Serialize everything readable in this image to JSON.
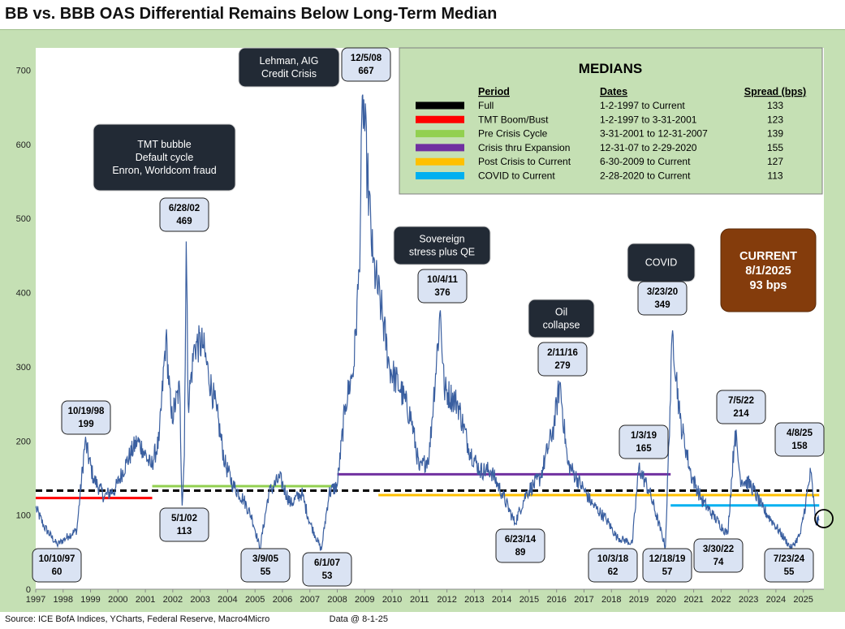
{
  "title": "BB vs. BBB OAS Differential Remains Below Long-Term Median",
  "source": "Source: ICE BofA Indices, YCharts, Federal Reserve, Macro4Micro",
  "data_date": "Data @ 8-1-25",
  "chart_data": {
    "type": "line",
    "x_ticks": [
      "1997",
      "1998",
      "1999",
      "2000",
      "2001",
      "2002",
      "2003",
      "2004",
      "2005",
      "2006",
      "2007",
      "2008",
      "2009",
      "2010",
      "2011",
      "2012",
      "2013",
      "2014",
      "2015",
      "2016",
      "2017",
      "2018",
      "2019",
      "2020",
      "2021",
      "2022",
      "2023",
      "2024",
      "2025"
    ],
    "y_ticks": [
      0,
      100,
      200,
      300,
      400,
      500,
      600,
      700
    ],
    "xlim": [
      1997.0,
      2025.75
    ],
    "ylim": [
      0,
      730
    ],
    "grid": false,
    "series_color": "#3a5fa0",
    "anchors": [
      [
        1997.0,
        110
      ],
      [
        1997.3,
        85
      ],
      [
        1997.78,
        60
      ],
      [
        1998.2,
        72
      ],
      [
        1998.5,
        80
      ],
      [
        1998.8,
        199
      ],
      [
        1999.1,
        150
      ],
      [
        1999.5,
        125
      ],
      [
        1999.9,
        135
      ],
      [
        2000.3,
        170
      ],
      [
        2000.7,
        200
      ],
      [
        2000.9,
        190
      ],
      [
        2001.2,
        165
      ],
      [
        2001.5,
        200
      ],
      [
        2001.75,
        340
      ],
      [
        2001.95,
        230
      ],
      [
        2002.25,
        270
      ],
      [
        2002.34,
        113
      ],
      [
        2002.42,
        180
      ],
      [
        2002.49,
        469
      ],
      [
        2002.56,
        250
      ],
      [
        2002.8,
        330
      ],
      [
        2003.1,
        330
      ],
      [
        2003.3,
        290
      ],
      [
        2003.6,
        240
      ],
      [
        2003.9,
        170
      ],
      [
        2004.2,
        140
      ],
      [
        2004.6,
        120
      ],
      [
        2004.9,
        95
      ],
      [
        2005.18,
        55
      ],
      [
        2005.5,
        130
      ],
      [
        2005.9,
        150
      ],
      [
        2006.3,
        115
      ],
      [
        2006.7,
        130
      ],
      [
        2007.0,
        90
      ],
      [
        2007.42,
        53
      ],
      [
        2007.7,
        130
      ],
      [
        2008.0,
        140
      ],
      [
        2008.3,
        250
      ],
      [
        2008.6,
        300
      ],
      [
        2008.8,
        430
      ],
      [
        2008.93,
        667
      ],
      [
        2009.1,
        560
      ],
      [
        2009.3,
        440
      ],
      [
        2009.6,
        380
      ],
      [
        2009.9,
        300
      ],
      [
        2010.3,
        270
      ],
      [
        2010.7,
        230
      ],
      [
        2011.0,
        160
      ],
      [
        2011.35,
        180
      ],
      [
        2011.76,
        376
      ],
      [
        2011.9,
        270
      ],
      [
        2012.4,
        250
      ],
      [
        2012.8,
        190
      ],
      [
        2013.2,
        160
      ],
      [
        2013.6,
        160
      ],
      [
        2014.0,
        130
      ],
      [
        2014.48,
        89
      ],
      [
        2014.9,
        130
      ],
      [
        2015.4,
        150
      ],
      [
        2015.9,
        220
      ],
      [
        2016.12,
        279
      ],
      [
        2016.4,
        170
      ],
      [
        2016.9,
        140
      ],
      [
        2017.3,
        115
      ],
      [
        2017.8,
        95
      ],
      [
        2018.2,
        70
      ],
      [
        2018.76,
        62
      ],
      [
        2019.0,
        165
      ],
      [
        2019.4,
        130
      ],
      [
        2019.97,
        57
      ],
      [
        2020.23,
        349
      ],
      [
        2020.5,
        230
      ],
      [
        2020.9,
        155
      ],
      [
        2021.3,
        120
      ],
      [
        2021.7,
        100
      ],
      [
        2022.24,
        74
      ],
      [
        2022.51,
        214
      ],
      [
        2022.7,
        150
      ],
      [
        2023.1,
        140
      ],
      [
        2023.5,
        110
      ],
      [
        2023.9,
        90
      ],
      [
        2024.56,
        55
      ],
      [
        2024.9,
        75
      ],
      [
        2025.27,
        158
      ],
      [
        2025.45,
        90
      ],
      [
        2025.58,
        93
      ]
    ],
    "medians": [
      {
        "name": "Full",
        "start": 1997.0,
        "end": 2025.58,
        "value": 133,
        "color": "#000000",
        "dash": true
      },
      {
        "name": "TMT Boom/Bust",
        "start": 1997.0,
        "end": 2001.25,
        "value": 123,
        "color": "#ff0000",
        "dash": false
      },
      {
        "name": "Pre Crisis Cycle",
        "start": 2001.25,
        "end": 2008.0,
        "value": 139,
        "color": "#92d050",
        "dash": false
      },
      {
        "name": "Crisis thru Expansion",
        "start": 2008.0,
        "end": 2020.16,
        "value": 155,
        "color": "#7030a0",
        "dash": false
      },
      {
        "name": "Post Crisis to Current",
        "start": 2009.5,
        "end": 2025.58,
        "value": 127,
        "color": "#ffc000",
        "dash": false
      },
      {
        "name": "COVID to Current",
        "start": 2020.16,
        "end": 2025.58,
        "value": 113,
        "color": "#00b0f0",
        "dash": false
      }
    ],
    "point_labels": [
      {
        "date": "10/10/97",
        "value": "60"
      },
      {
        "date": "10/19/98",
        "value": "199"
      },
      {
        "date": "6/28/02",
        "value": "469"
      },
      {
        "date": "5/1/02",
        "value": "113"
      },
      {
        "date": "3/9/05",
        "value": "55"
      },
      {
        "date": "6/1/07",
        "value": "53"
      },
      {
        "date": "12/5/08",
        "value": "667"
      },
      {
        "date": "10/4/11",
        "value": "376"
      },
      {
        "date": "6/23/14",
        "value": "89"
      },
      {
        "date": "2/11/16",
        "value": "279"
      },
      {
        "date": "10/3/18",
        "value": "62"
      },
      {
        "date": "1/3/19",
        "value": "165"
      },
      {
        "date": "12/18/19",
        "value": "57"
      },
      {
        "date": "3/23/20",
        "value": "349"
      },
      {
        "date": "3/30/22",
        "value": "74"
      },
      {
        "date": "7/5/22",
        "value": "214"
      },
      {
        "date": "7/23/24",
        "value": "55"
      },
      {
        "date": "4/8/25",
        "value": "158"
      }
    ],
    "events": [
      {
        "lines": [
          "TMT bubble",
          "Default cycle",
          "Enron, Worldcom fraud"
        ]
      },
      {
        "lines": [
          "Lehman, AIG",
          "Credit Crisis"
        ]
      },
      {
        "lines": [
          "Sovereign",
          "stress plus QE"
        ]
      },
      {
        "lines": [
          "Oil",
          "collapse"
        ]
      },
      {
        "lines": [
          "COVID"
        ]
      }
    ],
    "current": {
      "title": "CURRENT",
      "date": "8/1/2025",
      "value": "93 bps",
      "color": "#843c0c"
    },
    "medians_table": {
      "title": "MEDIANS",
      "headers": [
        "Period",
        "Dates",
        "Spread (bps)"
      ],
      "rows": [
        {
          "period": "Full",
          "dates": "1-2-1997  to Current",
          "spread": "133"
        },
        {
          "period": "TMT Boom/Bust",
          "dates": "1-2-1997  to 3-31-2001",
          "spread": "123"
        },
        {
          "period": "Pre Crisis Cycle",
          "dates": "3-31-2001  to 12-31-2007",
          "spread": "139"
        },
        {
          "period": "Crisis thru Expansion",
          "dates": "12-31-07  to 2-29-2020",
          "spread": "155"
        },
        {
          "period": "Post Crisis to Current",
          "dates": "6-30-2009  to Current",
          "spread": "127"
        },
        {
          "period": "COVID to Current",
          "dates": "2-28-2020  to Current",
          "spread": "113"
        }
      ]
    }
  }
}
